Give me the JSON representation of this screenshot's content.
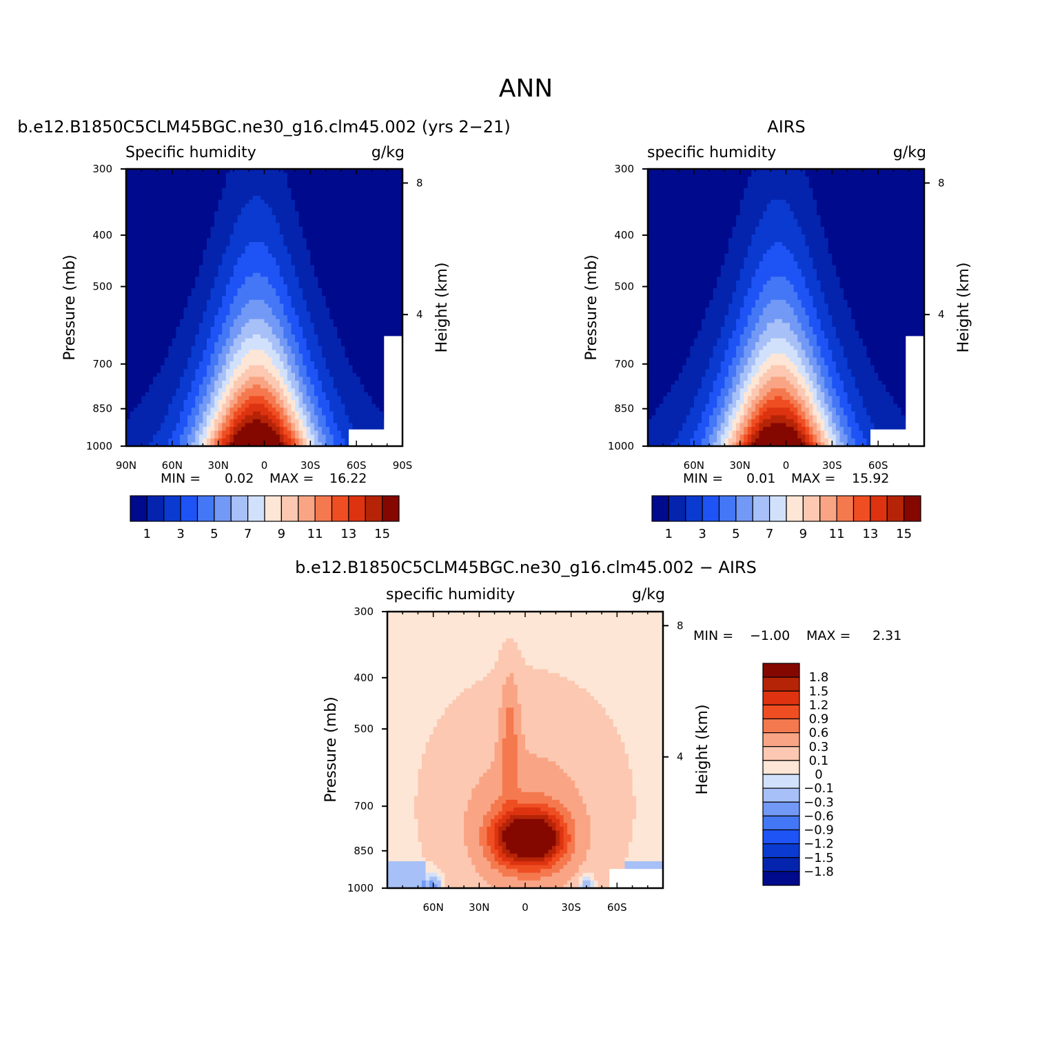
{
  "figure": {
    "title": "ANN"
  },
  "colors": {
    "abs_levels_palette": [
      "#000a8c",
      "#0424ae",
      "#0a3ad0",
      "#1e53f5",
      "#4477f5",
      "#7299f5",
      "#a7c0f7",
      "#d2e1fb",
      "#fde6d6",
      "#fcc8b1",
      "#f9a585",
      "#f5794f",
      "#ef4e22",
      "#dd3310",
      "#b52407",
      "#840800"
    ],
    "diff_levels_palette": [
      "#000a8c",
      "#0424ae",
      "#0a3ad0",
      "#1e53f5",
      "#4477f5",
      "#7299f5",
      "#a7c0f7",
      "#d2e1fb",
      "#fde6d6",
      "#fcc8b1",
      "#f9a585",
      "#f5794f",
      "#ef4e22",
      "#dd3310",
      "#b52407",
      "#840800"
    ]
  },
  "chart_data": [
    {
      "type": "heatmap",
      "panel_title": "b.e12.B1850C5CLM45BGC.ne30_g16.clm45.002 (yrs 2−21)",
      "left_label": "Specific humidity",
      "right_label": "g/kg",
      "ylabel": "Pressure (mb)",
      "y2label": "Height (km)",
      "x_ticks": [
        "90N",
        "60N",
        "30N",
        "0",
        "30S",
        "60S",
        "90S"
      ],
      "y_ticks": [
        "300",
        "400",
        "500",
        "700",
        "850",
        "1000"
      ],
      "y2_ticks": [
        "8",
        "4"
      ],
      "min_label": "MIN =",
      "min_value": "0.02",
      "max_label": "MAX =",
      "max_value": "16.22",
      "x_range": [
        90,
        -90
      ],
      "y_range": [
        1000,
        300
      ],
      "peak": {
        "lat": 5,
        "value": 16.22
      },
      "colorbar": {
        "orientation": "horizontal",
        "tick_labels": [
          "1",
          "3",
          "5",
          "7",
          "9",
          "11",
          "13",
          "15"
        ]
      }
    },
    {
      "type": "heatmap",
      "panel_title": "AIRS",
      "left_label": "specific humidity",
      "right_label": "g/kg",
      "ylabel": "Pressure (mb)",
      "y2label": "Height (km)",
      "x_ticks": [
        "60N",
        "30N",
        "0",
        "30S",
        "60S"
      ],
      "y_ticks": [
        "300",
        "400",
        "500",
        "700",
        "850",
        "1000"
      ],
      "y2_ticks": [
        "8",
        "4"
      ],
      "min_label": "MIN =",
      "min_value": "0.01",
      "max_label": "MAX =",
      "max_value": "15.92",
      "x_range": [
        90,
        -90
      ],
      "y_range": [
        1000,
        300
      ],
      "peak": {
        "lat": 5,
        "value": 15.92
      },
      "colorbar": {
        "orientation": "horizontal",
        "tick_labels": [
          "1",
          "3",
          "5",
          "7",
          "9",
          "11",
          "13",
          "15"
        ]
      }
    },
    {
      "type": "heatmap",
      "panel_title": "b.e12.B1850C5CLM45BGC.ne30_g16.clm45.002 − AIRS",
      "left_label": "specific humidity",
      "right_label": "g/kg",
      "ylabel": "Pressure (mb)",
      "y2label": "Height (km)",
      "x_ticks": [
        "60N",
        "30N",
        "0",
        "30S",
        "60S"
      ],
      "y_ticks": [
        "300",
        "400",
        "500",
        "700",
        "850",
        "1000"
      ],
      "y2_ticks": [
        "8",
        "4"
      ],
      "min_label": "MIN =",
      "min_value": "−1.00",
      "max_label": "MAX =",
      "max_value": "2.31",
      "x_range": [
        90,
        -90
      ],
      "y_range": [
        1000,
        300
      ],
      "colorbar": {
        "orientation": "vertical",
        "tick_labels": [
          "1.8",
          "1.5",
          "1.2",
          "0.9",
          "0.6",
          "0.3",
          "0.1",
          "0",
          "−0.1",
          "−0.3",
          "−0.6",
          "−0.9",
          "−1.2",
          "−1.5",
          "−1.8"
        ]
      }
    }
  ]
}
